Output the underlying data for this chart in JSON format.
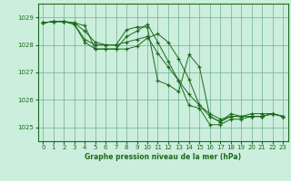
{
  "background_color": "#cceedd",
  "plot_bg_color": "#cceedd",
  "grid_color": "#66aa88",
  "line_color": "#1a6b1a",
  "marker_color": "#1a6b1a",
  "title": "Graphe pression niveau de la mer (hPa)",
  "ylim": [
    1024.5,
    1029.5
  ],
  "xlim": [
    -0.5,
    23.5
  ],
  "yticks": [
    1025,
    1026,
    1027,
    1028,
    1029
  ],
  "xticks": [
    0,
    1,
    2,
    3,
    4,
    5,
    6,
    7,
    8,
    9,
    10,
    11,
    12,
    13,
    14,
    15,
    16,
    17,
    18,
    19,
    20,
    21,
    22,
    23
  ],
  "series": [
    [
      1028.8,
      1028.85,
      1028.85,
      1028.8,
      1028.7,
      1027.85,
      1027.85,
      1027.85,
      1027.85,
      1027.95,
      1028.25,
      1028.4,
      1028.1,
      1027.5,
      1026.75,
      1025.8,
      1025.4,
      1025.2,
      1025.4,
      1025.4,
      1025.4,
      1025.4,
      1025.5,
      1025.4
    ],
    [
      1028.8,
      1028.85,
      1028.85,
      1028.75,
      1028.2,
      1028.0,
      1028.0,
      1028.0,
      1028.55,
      1028.65,
      1028.65,
      1026.7,
      1026.55,
      1026.3,
      1027.65,
      1027.2,
      1025.4,
      1025.2,
      1025.5,
      1025.4,
      1025.5,
      1025.5,
      1025.5,
      1025.4
    ],
    [
      1028.8,
      1028.85,
      1028.85,
      1028.75,
      1028.1,
      1027.85,
      1027.85,
      1027.85,
      1028.3,
      1028.5,
      1028.75,
      1028.1,
      1027.4,
      1026.7,
      1025.8,
      1025.7,
      1025.1,
      1025.1,
      1025.3,
      1025.3,
      1025.4,
      1025.4,
      1025.5,
      1025.4
    ],
    [
      1028.8,
      1028.85,
      1028.85,
      1028.8,
      1028.5,
      1028.1,
      1028.0,
      1028.0,
      1028.1,
      1028.2,
      1028.3,
      1027.7,
      1027.2,
      1026.7,
      1026.2,
      1025.8,
      1025.5,
      1025.3,
      1025.4,
      1025.4,
      1025.4,
      1025.4,
      1025.5,
      1025.4
    ]
  ]
}
